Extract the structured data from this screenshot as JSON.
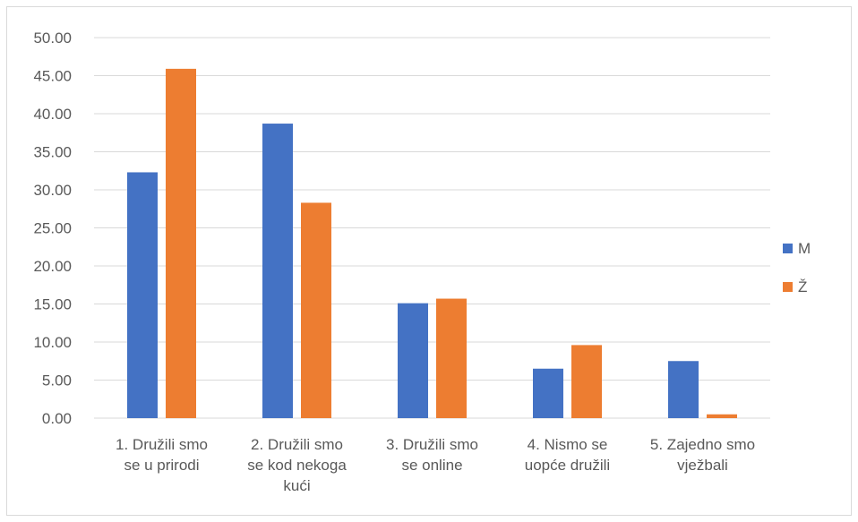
{
  "chart_data": {
    "type": "bar",
    "categories": [
      [
        "1. Družili smo",
        "se u prirodi"
      ],
      [
        "2. Družili smo",
        "se kod nekoga",
        "kući"
      ],
      [
        "3. Družili smo",
        "se online"
      ],
      [
        "4. Nismo se",
        "uopće družili"
      ],
      [
        "5. Zajedno smo",
        "vježbali"
      ]
    ],
    "series": [
      {
        "name": "M",
        "color": "#4472C4",
        "values": [
          32.3,
          38.7,
          15.1,
          6.5,
          7.5
        ]
      },
      {
        "name": "Ž",
        "color": "#ED7D31",
        "values": [
          45.9,
          28.3,
          15.7,
          9.6,
          0.5
        ]
      }
    ],
    "ylim": [
      0,
      50
    ],
    "yticks": [
      "0.00",
      "5.00",
      "10.00",
      "15.00",
      "20.00",
      "25.00",
      "30.00",
      "35.00",
      "40.00",
      "45.00",
      "50.00"
    ],
    "grid": true,
    "legend_position": "right",
    "title": "",
    "xlabel": "",
    "ylabel": ""
  }
}
